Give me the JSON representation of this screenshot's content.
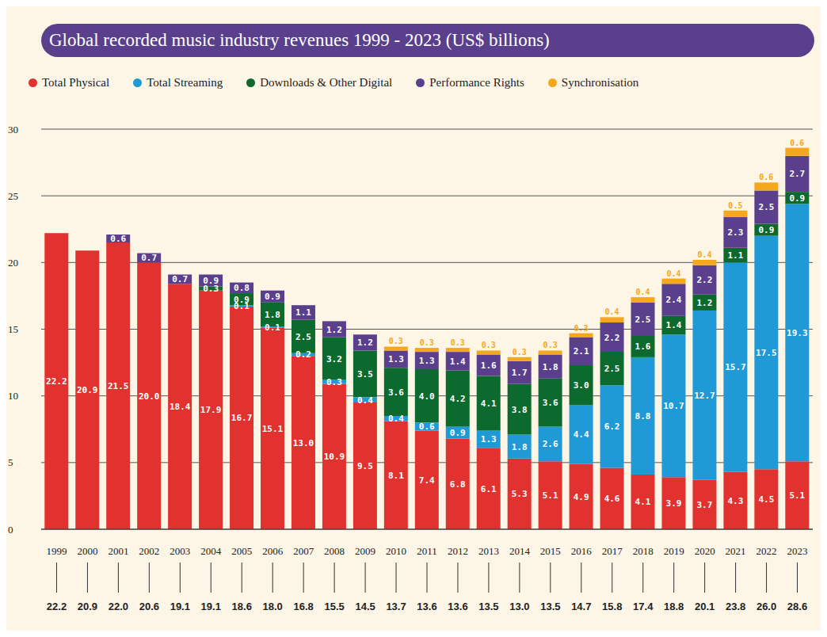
{
  "chart_data": {
    "type": "bar",
    "title": "Global recorded music industry revenues 1999 - 2023 (US$ billions)",
    "categories": [
      "1999",
      "2000",
      "2001",
      "2002",
      "2003",
      "2004",
      "2005",
      "2006",
      "2007",
      "2008",
      "2009",
      "2010",
      "2011",
      "2012",
      "2013",
      "2014",
      "2015",
      "2016",
      "2017",
      "2018",
      "2019",
      "2020",
      "2021",
      "2022",
      "2023"
    ],
    "series": [
      {
        "name": "Total Physical",
        "color": "#e2322f",
        "values": [
          22.2,
          20.9,
          21.5,
          20,
          18.4,
          17.9,
          16.7,
          15.1,
          13,
          10.9,
          9.5,
          8.1,
          7.4,
          6.8,
          6.1,
          5.3,
          5.1,
          4.9,
          4.6,
          4.1,
          3.9,
          3.7,
          4.3,
          4.5,
          5.1
        ],
        "value_labels": [
          "22.2",
          "20.9",
          "21.5",
          "20.0",
          "18.4",
          "17.9",
          "16.7",
          "15.1",
          "13.0",
          "10.9",
          "9.5",
          "8.1",
          "7.4",
          "6.8",
          "6.1",
          "5.3",
          "5.1",
          "4.9",
          "4.6",
          "4.1",
          "3.9",
          "3.7",
          "4.3",
          "4.5",
          "5.1"
        ]
      },
      {
        "name": "Total Streaming",
        "color": "#1f9ad6",
        "values": [
          null,
          null,
          null,
          null,
          null,
          null,
          0.1,
          0.1,
          0.2,
          0.3,
          0.4,
          0.4,
          0.6,
          0.9,
          1.3,
          1.8,
          2.6,
          4.4,
          6.2,
          8.8,
          10.7,
          12.7,
          15.7,
          17.5,
          19.3
        ]
      },
      {
        "name": "Downloads & Other Digital",
        "color": "#0c6a2e",
        "values": [
          null,
          null,
          null,
          null,
          null,
          0.3,
          0.9,
          1.8,
          2.5,
          3.2,
          3.5,
          3.6,
          4,
          4.2,
          4.1,
          3.8,
          3.6,
          3,
          2.5,
          1.6,
          1.4,
          1.2,
          1.1,
          0.9,
          0.9
        ],
        "value_labels": [
          null,
          null,
          null,
          null,
          null,
          "0.3",
          "0.9",
          "1.8",
          "2.5",
          "3.2",
          "3.5",
          "3.6",
          "4.0",
          "4.2",
          "4.1",
          "3.8",
          "3.6",
          "3.0",
          "2.5",
          "1.6",
          "1.4",
          "1.2",
          "1.1",
          "0.9",
          "0.9"
        ]
      },
      {
        "name": "Performance Rights",
        "color": "#5a3f8c",
        "values": [
          null,
          null,
          0.6,
          0.7,
          0.7,
          0.9,
          0.8,
          0.9,
          1.1,
          1.2,
          1.2,
          1.3,
          1.3,
          1.4,
          1.6,
          1.7,
          1.8,
          2.1,
          2.2,
          2.5,
          2.4,
          2.2,
          2.3,
          2.5,
          2.7
        ]
      },
      {
        "name": "Synchronisation",
        "color": "#f5a81c",
        "values": [
          null,
          null,
          null,
          null,
          null,
          null,
          null,
          null,
          null,
          null,
          null,
          0.3,
          0.3,
          0.3,
          0.3,
          0.3,
          0.3,
          0.3,
          0.4,
          0.4,
          0.4,
          0.4,
          0.5,
          0.6,
          0.6
        ]
      }
    ],
    "totals": [
      22.2,
      20.9,
      22,
      20.6,
      19.1,
      19.1,
      18.6,
      18,
      16.8,
      15.5,
      14.5,
      13.7,
      13.6,
      13.6,
      13.5,
      13,
      13.5,
      14.7,
      15.8,
      17.4,
      18.8,
      20.1,
      23.8,
      26,
      28.6
    ],
    "total_labels": [
      "22.2",
      "20.9",
      "22.0",
      "20.6",
      "19.1",
      "19.1",
      "18.6",
      "18.0",
      "16.8",
      "15.5",
      "14.5",
      "13.7",
      "13.6",
      "13.6",
      "13.5",
      "13.0",
      "13.5",
      "14.7",
      "15.8",
      "17.4",
      "18.8",
      "20.1",
      "23.8",
      "26.0",
      "28.6"
    ],
    "ylim": [
      0,
      30
    ],
    "yticks": [
      0,
      5,
      10,
      15,
      20,
      25,
      30
    ],
    "grid": true,
    "stacked": true,
    "data_labels": true,
    "legend": "top-left"
  }
}
